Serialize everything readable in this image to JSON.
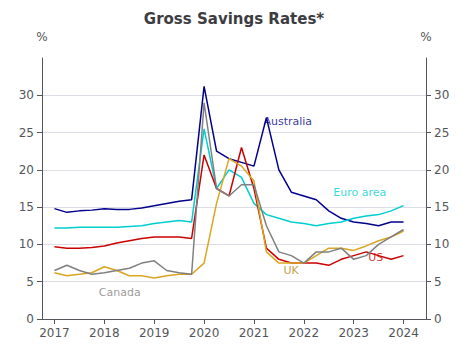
{
  "chart_data": {
    "type": "line",
    "title": "Gross Savings Rates*",
    "ylabel": "%",
    "y2label": "%",
    "x": [
      2017.0,
      2017.25,
      2017.5,
      2017.75,
      2018.0,
      2018.25,
      2018.5,
      2018.75,
      2019.0,
      2019.25,
      2019.5,
      2019.75,
      2020.0,
      2020.25,
      2020.5,
      2020.75,
      2021.0,
      2021.25,
      2021.5,
      2021.75,
      2022.0,
      2022.25,
      2022.5,
      2022.75,
      2023.0,
      2023.25,
      2023.5,
      2023.75,
      2024.0
    ],
    "series": [
      {
        "name": "Australia",
        "color": "#00008B",
        "values": [
          14.8,
          14.3,
          14.5,
          14.6,
          14.8,
          14.7,
          14.7,
          14.9,
          15.2,
          15.5,
          15.8,
          16.0,
          31.2,
          22.5,
          21.5,
          21.0,
          20.5,
          27.0,
          20.0,
          17.0,
          16.5,
          16.0,
          14.5,
          13.5,
          13.0,
          12.8,
          12.5,
          13.0,
          13.0
        ]
      },
      {
        "name": "Euro area",
        "color": "#00CED1",
        "values": [
          12.2,
          12.2,
          12.3,
          12.3,
          12.3,
          12.3,
          12.4,
          12.5,
          12.8,
          13.0,
          13.2,
          13.0,
          25.5,
          17.5,
          20.0,
          19.0,
          15.5,
          14.0,
          13.5,
          13.0,
          12.8,
          12.5,
          12.8,
          13.0,
          13.5,
          13.8,
          14.0,
          14.5,
          15.2
        ]
      },
      {
        "name": "US",
        "color": "#CC0000",
        "values": [
          9.7,
          9.5,
          9.5,
          9.6,
          9.8,
          10.2,
          10.5,
          10.8,
          11.0,
          11.0,
          11.0,
          10.8,
          22.0,
          17.5,
          16.5,
          23.0,
          17.5,
          9.5,
          8.0,
          7.5,
          7.5,
          7.5,
          7.2,
          8.0,
          8.5,
          9.0,
          8.5,
          8.0,
          8.5
        ]
      },
      {
        "name": "UK",
        "color": "#DAA520",
        "values": [
          6.2,
          5.8,
          6.0,
          6.2,
          7.0,
          6.5,
          5.8,
          5.8,
          5.5,
          5.8,
          6.0,
          6.0,
          7.5,
          15.5,
          21.5,
          20.5,
          18.5,
          9.0,
          7.5,
          7.5,
          7.5,
          8.5,
          9.5,
          9.5,
          9.2,
          9.8,
          10.5,
          11.0,
          11.8
        ]
      },
      {
        "name": "Canada",
        "color": "#808080",
        "values": [
          6.5,
          7.2,
          6.5,
          6.0,
          6.2,
          6.5,
          6.8,
          7.5,
          7.8,
          6.5,
          6.2,
          6.0,
          29.0,
          17.5,
          16.5,
          18.0,
          18.0,
          12.5,
          9.0,
          8.5,
          7.5,
          9.0,
          9.0,
          9.5,
          8.0,
          8.5,
          10.0,
          11.0,
          12.0
        ]
      }
    ],
    "annotations": [
      {
        "text": "Australia",
        "x": 2021.15,
        "y": 26.5,
        "color": "#00008B"
      },
      {
        "text": "Euro area",
        "x": 2022.55,
        "y": 17.0,
        "color": "#00CED1"
      },
      {
        "text": "US",
        "x": 2023.25,
        "y": 8.3,
        "color": "#CC0000"
      },
      {
        "text": "UK",
        "x": 2021.55,
        "y": 6.5,
        "color": "#B8860B"
      },
      {
        "text": "Canada",
        "x": 2017.85,
        "y": 3.5,
        "color": "#808080"
      }
    ],
    "xlim": [
      2016.75,
      2024.45
    ],
    "xticks": [
      2017,
      2018,
      2019,
      2020,
      2021,
      2022,
      2023,
      2024
    ],
    "ylim": [
      0,
      35
    ],
    "yticks": [
      0,
      5,
      10,
      15,
      20,
      25,
      30
    ],
    "y2lim": [
      0,
      35
    ],
    "y2ticks": [
      0,
      5,
      10,
      15,
      20,
      25,
      30
    ],
    "grid": true
  }
}
